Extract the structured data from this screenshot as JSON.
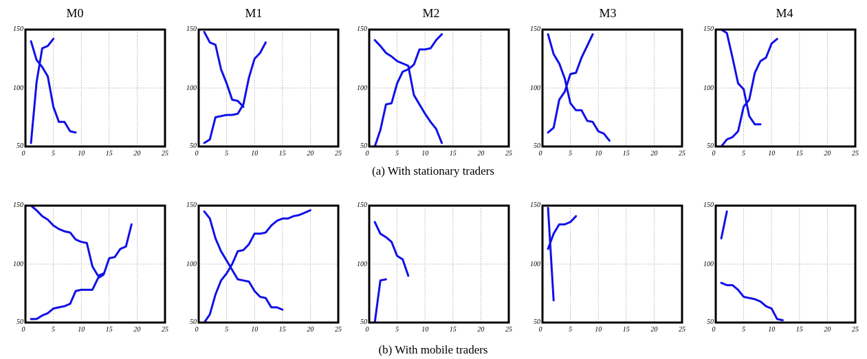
{
  "titles": [
    "M0",
    "M1",
    "M2",
    "M3",
    "M4"
  ],
  "captions": {
    "a": "(a) With stationary traders",
    "b": "(b) With mobile traders"
  },
  "chart_data": [
    {
      "type": "line",
      "row": "a",
      "col": 0,
      "xlim": [
        0,
        25
      ],
      "ylim": [
        50,
        150
      ],
      "xticks": [
        0,
        5,
        10,
        15,
        20,
        25
      ],
      "yticks": [
        50,
        100,
        150
      ],
      "color": "#1010e8",
      "series": [
        {
          "x": [
            1,
            2,
            3,
            4,
            5,
            6,
            7,
            8,
            9
          ],
          "y": [
            140,
            124,
            118,
            110,
            84,
            71,
            71,
            63,
            62
          ]
        },
        {
          "x": [
            1,
            2,
            3,
            4,
            5
          ],
          "y": [
            53,
            105,
            134,
            136,
            142
          ]
        }
      ]
    },
    {
      "type": "line",
      "row": "a",
      "col": 1,
      "xlim": [
        0,
        25
      ],
      "ylim": [
        50,
        150
      ],
      "xticks": [
        0,
        5,
        10,
        15,
        20,
        25
      ],
      "yticks": [
        50,
        100,
        150
      ],
      "color": "#1010e8",
      "series": [
        {
          "x": [
            1,
            2,
            3,
            4,
            5,
            6,
            7,
            8
          ],
          "y": [
            148,
            139,
            137,
            116,
            104,
            90,
            89,
            84
          ]
        },
        {
          "x": [
            1,
            2,
            3,
            4,
            5,
            6,
            7,
            8,
            9,
            10,
            11,
            12
          ],
          "y": [
            53,
            56,
            75,
            76,
            77,
            77,
            78,
            86,
            109,
            125,
            130,
            139
          ]
        }
      ]
    },
    {
      "type": "line",
      "row": "a",
      "col": 2,
      "xlim": [
        0,
        25
      ],
      "ylim": [
        50,
        150
      ],
      "xticks": [
        0,
        5,
        10,
        15,
        20,
        25
      ],
      "yticks": [
        50,
        100,
        150
      ],
      "color": "#1010e8",
      "series": [
        {
          "x": [
            1,
            2,
            3,
            4,
            5,
            6,
            7,
            8,
            9,
            10,
            11,
            12,
            13
          ],
          "y": [
            141,
            136,
            130,
            127,
            123,
            121,
            119,
            94,
            86,
            78,
            71,
            65,
            53
          ]
        },
        {
          "x": [
            1,
            2,
            3,
            4,
            5,
            6,
            7,
            8,
            9,
            10,
            11,
            12,
            13
          ],
          "y": [
            50,
            64,
            86,
            87,
            104,
            114,
            116,
            120,
            133,
            133,
            134,
            141,
            146
          ]
        }
      ]
    },
    {
      "type": "line",
      "row": "a",
      "col": 3,
      "xlim": [
        0,
        25
      ],
      "ylim": [
        50,
        150
      ],
      "xticks": [
        0,
        5,
        10,
        15,
        20,
        25
      ],
      "yticks": [
        50,
        100,
        150
      ],
      "color": "#1010e8",
      "series": [
        {
          "x": [
            1,
            2,
            3,
            4,
            5,
            6,
            7,
            8,
            9,
            10,
            11,
            12
          ],
          "y": [
            146,
            129,
            121,
            108,
            87,
            81,
            81,
            72,
            71,
            63,
            61,
            55
          ]
        },
        {
          "x": [
            1,
            2,
            3,
            4,
            5,
            6,
            7,
            8,
            9
          ],
          "y": [
            62,
            66,
            90,
            97,
            112,
            113,
            126,
            136,
            146
          ]
        }
      ]
    },
    {
      "type": "line",
      "row": "a",
      "col": 4,
      "xlim": [
        0,
        25
      ],
      "ylim": [
        50,
        150
      ],
      "xticks": [
        0,
        5,
        10,
        15,
        20,
        25
      ],
      "yticks": [
        50,
        100,
        150
      ],
      "color": "#1010e8",
      "series": [
        {
          "x": [
            1,
            2,
            3,
            4,
            5,
            6,
            7,
            8
          ],
          "y": [
            150,
            147,
            126,
            104,
            99,
            76,
            69,
            69
          ]
        },
        {
          "x": [
            1,
            2,
            3,
            4,
            5,
            6,
            7,
            8,
            9,
            10,
            11
          ],
          "y": [
            50,
            56,
            58,
            63,
            84,
            90,
            113,
            123,
            126,
            138,
            142
          ]
        }
      ]
    },
    {
      "type": "line",
      "row": "b",
      "col": 0,
      "xlim": [
        0,
        25
      ],
      "ylim": [
        50,
        150
      ],
      "xticks": [
        0,
        5,
        10,
        15,
        20,
        25
      ],
      "yticks": [
        50,
        100,
        150
      ],
      "color": "#1010e8",
      "series": [
        {
          "x": [
            1,
            2,
            3,
            4,
            5,
            6,
            7,
            8,
            9,
            10,
            11,
            12,
            13,
            14
          ],
          "y": [
            150,
            146,
            141,
            138,
            133,
            130,
            128,
            127,
            121,
            119,
            118,
            98,
            90,
            92
          ]
        },
        {
          "x": [
            1,
            2,
            3,
            4,
            5,
            6,
            7,
            8,
            9,
            10,
            11,
            12,
            13,
            14,
            15,
            16,
            17,
            18,
            19
          ],
          "y": [
            53,
            53,
            56,
            58,
            62,
            63,
            64,
            66,
            77,
            78,
            78,
            78,
            88,
            91,
            105,
            106,
            113,
            115,
            134
          ]
        }
      ]
    },
    {
      "type": "line",
      "row": "b",
      "col": 1,
      "xlim": [
        0,
        25
      ],
      "ylim": [
        50,
        150
      ],
      "xticks": [
        0,
        5,
        10,
        15,
        20,
        25
      ],
      "yticks": [
        50,
        100,
        150
      ],
      "color": "#1010e8",
      "series": [
        {
          "x": [
            1,
            2,
            3,
            4,
            5,
            6,
            7,
            8,
            9,
            10,
            11,
            12,
            13,
            14,
            15
          ],
          "y": [
            145,
            139,
            122,
            111,
            103,
            95,
            87,
            86,
            85,
            77,
            72,
            71,
            63,
            63,
            61
          ]
        },
        {
          "x": [
            1,
            2,
            3,
            4,
            5,
            6,
            7,
            8,
            9,
            10,
            11,
            12,
            13,
            14,
            15,
            16,
            17,
            18,
            19,
            20
          ],
          "y": [
            50,
            57,
            74,
            86,
            92,
            100,
            111,
            112,
            117,
            126,
            126,
            127,
            133,
            137,
            139,
            139,
            141,
            142,
            144,
            146
          ]
        }
      ]
    },
    {
      "type": "line",
      "row": "b",
      "col": 2,
      "xlim": [
        0,
        25
      ],
      "ylim": [
        50,
        150
      ],
      "xticks": [
        0,
        5,
        10,
        15,
        20,
        25
      ],
      "yticks": [
        50,
        100,
        150
      ],
      "color": "#1010e8",
      "series": [
        {
          "x": [
            1,
            2,
            3,
            4,
            5,
            6,
            7
          ],
          "y": [
            136,
            126,
            123,
            119,
            107,
            104,
            90
          ]
        },
        {
          "x": [
            1,
            2,
            3
          ],
          "y": [
            50,
            86,
            87
          ]
        }
      ]
    },
    {
      "type": "line",
      "row": "b",
      "col": 3,
      "xlim": [
        0,
        25
      ],
      "ylim": [
        50,
        150
      ],
      "xticks": [
        0,
        5,
        10,
        15,
        20,
        25
      ],
      "yticks": [
        50,
        100,
        150
      ],
      "color": "#1010e8",
      "series": [
        {
          "x": [
            1,
            2
          ],
          "y": [
            148,
            69
          ]
        },
        {
          "x": [
            1,
            2,
            3,
            4,
            5,
            6
          ],
          "y": [
            113,
            126,
            134,
            134,
            136,
            141
          ]
        }
      ]
    },
    {
      "type": "line",
      "row": "b",
      "col": 4,
      "xlim": [
        0,
        25
      ],
      "ylim": [
        50,
        150
      ],
      "xticks": [
        0,
        5,
        10,
        15,
        20,
        25
      ],
      "yticks": [
        50,
        100,
        150
      ],
      "color": "#1010e8",
      "series": [
        {
          "x": [
            1,
            2
          ],
          "y": [
            122,
            145
          ]
        },
        {
          "x": [
            1,
            2,
            3,
            4,
            5,
            6,
            7,
            8,
            9,
            10,
            11,
            12
          ],
          "y": [
            84,
            82,
            82,
            78,
            72,
            71,
            70,
            68,
            64,
            62,
            53,
            52
          ]
        }
      ]
    }
  ]
}
